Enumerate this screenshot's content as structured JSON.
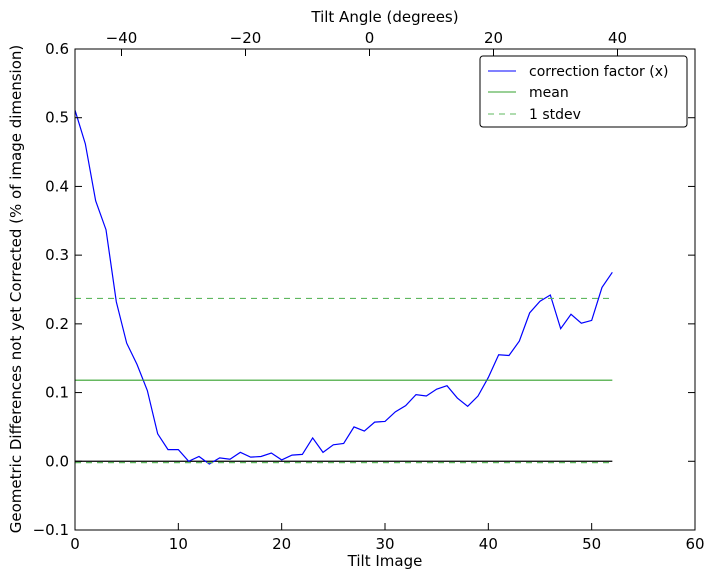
{
  "chart_data": {
    "type": "line",
    "title": "",
    "xlabel": "Tilt Image",
    "ylabel": "Geometric Differences not yet Corrected (% of image dimension)",
    "top_xlabel": "Tilt Angle (degrees)",
    "xlim": [
      0,
      60
    ],
    "ylim": [
      -0.1,
      0.6
    ],
    "top_xlim": [
      -47.5,
      52.5
    ],
    "x_ticks": [
      0,
      10,
      20,
      30,
      40,
      50,
      60
    ],
    "y_ticks": [
      -0.1,
      0.0,
      0.1,
      0.2,
      0.3,
      0.4,
      0.5,
      0.6
    ],
    "top_ticks": [
      -40,
      -20,
      0,
      20,
      40
    ],
    "x_tick_labels": [
      "0",
      "10",
      "20",
      "30",
      "40",
      "50",
      "60"
    ],
    "y_tick_labels": [
      "−0.1",
      "0.0",
      "0.1",
      "0.2",
      "0.3",
      "0.4",
      "0.5",
      "0.6"
    ],
    "top_tick_labels": [
      "−40",
      "−20",
      "0",
      "20",
      "40"
    ],
    "grid": false,
    "legend_position": "top-right",
    "series": [
      {
        "name": "correction factor (x)",
        "style": "solid",
        "color": "#0000ff",
        "x": [
          0,
          1,
          2,
          3,
          4,
          5,
          6,
          7,
          8,
          9,
          10,
          11,
          12,
          13,
          14,
          15,
          16,
          17,
          18,
          19,
          20,
          21,
          22,
          23,
          24,
          25,
          26,
          27,
          28,
          29,
          30,
          31,
          32,
          33,
          34,
          35,
          36,
          37,
          38,
          39,
          40,
          41,
          42,
          43,
          44,
          45,
          46,
          47,
          48,
          49,
          50,
          51,
          52
        ],
        "y": [
          0.511,
          0.462,
          0.379,
          0.337,
          0.232,
          0.172,
          0.141,
          0.103,
          0.04,
          0.017,
          0.017,
          0.0,
          0.007,
          -0.004,
          0.005,
          0.003,
          0.013,
          0.006,
          0.007,
          0.012,
          0.002,
          0.009,
          0.01,
          0.034,
          0.013,
          0.024,
          0.026,
          0.05,
          0.044,
          0.057,
          0.058,
          0.072,
          0.081,
          0.097,
          0.095,
          0.105,
          0.11,
          0.092,
          0.08,
          0.095,
          0.122,
          0.155,
          0.154,
          0.175,
          0.216,
          0.233,
          0.242,
          0.193,
          0.214,
          0.201,
          0.205,
          0.253,
          0.275
        ]
      },
      {
        "name": "mean",
        "style": "solid",
        "color": "#33a02c",
        "x": [
          0,
          52
        ],
        "y": [
          0.118,
          0.118
        ]
      },
      {
        "name": "1 stdev",
        "style": "dashed",
        "color": "#5fb85f",
        "x": [
          0,
          52
        ],
        "y": [
          0.237,
          0.237
        ]
      },
      {
        "name": "",
        "style": "dashed",
        "color": "#5fb85f",
        "x": [
          0,
          52
        ],
        "y": [
          -0.002,
          -0.002
        ]
      }
    ],
    "reference_line": {
      "y": 0,
      "x": [
        0,
        52
      ],
      "color": "#000000"
    }
  }
}
